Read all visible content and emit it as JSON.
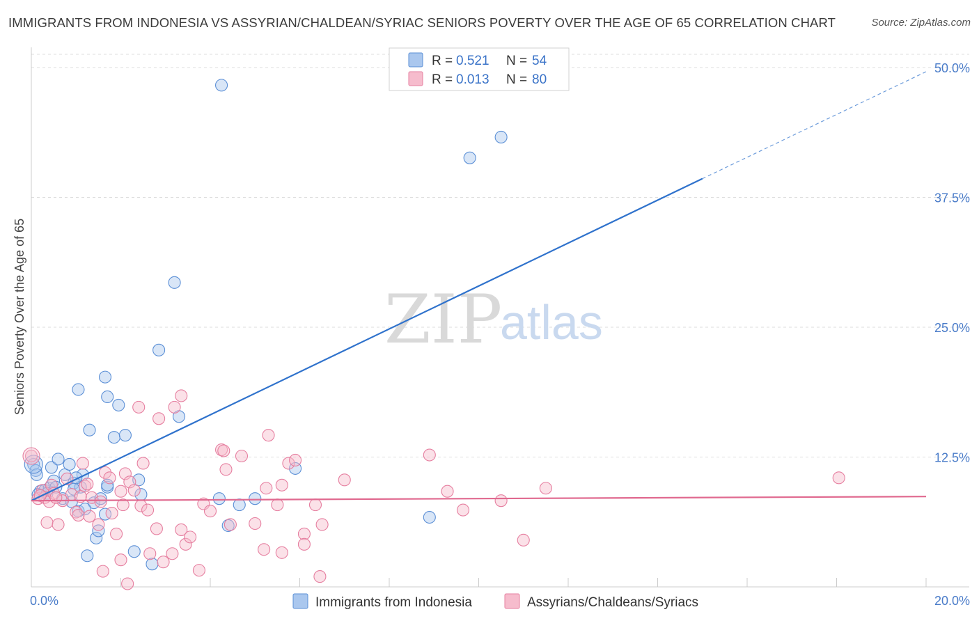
{
  "title": "IMMIGRANTS FROM INDONESIA VS ASSYRIAN/CHALDEAN/SYRIAC SENIORS POVERTY OVER THE AGE OF 65 CORRELATION CHART",
  "source": "Source: ZipAtlas.com",
  "watermark": {
    "zip": "ZIP",
    "atlas": "atlas"
  },
  "colors": {
    "blue": "#5b8fd6",
    "blue_fill": "#aac7ee",
    "blue_line": "#2f72cc",
    "pink": "#e67fa0",
    "pink_fill": "#f6bccd",
    "pink_line": "#e0698f",
    "grid": "#dcdcdc",
    "axis_text": "#4a7cc9"
  },
  "legend": {
    "rows": [
      {
        "r_label": "R =",
        "r_value": "0.521",
        "n_label": "N =",
        "n_value": "54"
      },
      {
        "r_label": "R =",
        "r_value": "0.013",
        "n_label": "N =",
        "n_value": "80"
      }
    ]
  },
  "bottom_legend": [
    "Immigrants from Indonesia",
    "Assyrians/Chaldeans/Syriacs"
  ],
  "chart_data": {
    "type": "scatter",
    "title": "IMMIGRANTS FROM INDONESIA VS ASSYRIAN/CHALDEAN/SYRIAC SENIORS POVERTY OVER THE AGE OF 65 CORRELATION CHART",
    "xlabel": "",
    "ylabel": "Seniors Poverty Over the Age of 65",
    "xlim": [
      0,
      20
    ],
    "ylim": [
      0,
      50
    ],
    "x_tick_labels": [
      "0.0%",
      "20.0%"
    ],
    "y_ticks": [
      12.5,
      25.0,
      37.5,
      50.0
    ],
    "y_tick_labels": [
      "12.5%",
      "25.0%",
      "37.5%",
      "50.0%"
    ],
    "grid": true,
    "series": [
      {
        "name": "Immigrants from Indonesia",
        "r": 0.521,
        "n": 54,
        "trend": {
          "x0": 0,
          "y0": 8.3,
          "x1": 15,
          "y1": 39.3,
          "dash_to_x": 20,
          "dash_to_y": 49.6
        },
        "points": [
          [
            0.05,
            11.8
          ],
          [
            0.1,
            11.2
          ],
          [
            0.12,
            10.8
          ],
          [
            0.2,
            9.2
          ],
          [
            0.3,
            9.3
          ],
          [
            0.4,
            9.5
          ],
          [
            0.45,
            11.5
          ],
          [
            0.5,
            10.2
          ],
          [
            0.55,
            9.6
          ],
          [
            0.6,
            12.3
          ],
          [
            0.7,
            8.5
          ],
          [
            0.75,
            10.8
          ],
          [
            0.85,
            11.8
          ],
          [
            0.9,
            8.2
          ],
          [
            0.95,
            10.0
          ],
          [
            1.05,
            7.3
          ],
          [
            1.1,
            9.6
          ],
          [
            1.15,
            10.8
          ],
          [
            1.25,
            3.0
          ],
          [
            1.3,
            15.1
          ],
          [
            1.4,
            8.1
          ],
          [
            1.45,
            4.7
          ],
          [
            1.5,
            5.4
          ],
          [
            1.55,
            8.5
          ],
          [
            1.65,
            7.0
          ],
          [
            1.7,
            9.6
          ],
          [
            1.7,
            9.8
          ],
          [
            1.85,
            14.4
          ],
          [
            1.95,
            17.5
          ],
          [
            2.1,
            14.6
          ],
          [
            2.4,
            10.3
          ],
          [
            2.45,
            8.9
          ],
          [
            2.3,
            3.4
          ],
          [
            2.7,
            2.2
          ],
          [
            2.85,
            22.8
          ],
          [
            3.2,
            29.3
          ],
          [
            3.3,
            16.4
          ],
          [
            4.25,
            48.3
          ],
          [
            4.2,
            8.5
          ],
          [
            4.4,
            5.9
          ],
          [
            4.65,
            7.9
          ],
          [
            5.0,
            8.5
          ],
          [
            5.9,
            11.4
          ],
          [
            8.9,
            6.7
          ],
          [
            9.8,
            41.3
          ],
          [
            10.5,
            43.3
          ],
          [
            0.15,
            8.9
          ],
          [
            0.35,
            9.0
          ],
          [
            1.0,
            10.5
          ],
          [
            1.2,
            7.5
          ],
          [
            1.65,
            20.2
          ],
          [
            1.7,
            18.3
          ],
          [
            1.05,
            19.0
          ],
          [
            0.95,
            9.4
          ]
        ]
      },
      {
        "name": "Assyrians/Chaldeans/Syriacs",
        "r": 0.013,
        "n": 80,
        "trend": {
          "x0": 0,
          "y0": 8.3,
          "x1": 20,
          "y1": 8.7
        },
        "points": [
          [
            0.0,
            12.6
          ],
          [
            0.15,
            8.5
          ],
          [
            0.25,
            9.3
          ],
          [
            0.3,
            8.6
          ],
          [
            0.35,
            6.2
          ],
          [
            0.4,
            8.2
          ],
          [
            0.45,
            9.8
          ],
          [
            0.5,
            9.0
          ],
          [
            0.6,
            6.0
          ],
          [
            0.7,
            8.3
          ],
          [
            0.8,
            10.4
          ],
          [
            0.9,
            8.9
          ],
          [
            1.0,
            7.2
          ],
          [
            1.05,
            6.9
          ],
          [
            1.15,
            11.9
          ],
          [
            1.2,
            9.7
          ],
          [
            1.3,
            6.8
          ],
          [
            1.35,
            8.6
          ],
          [
            1.5,
            6.0
          ],
          [
            1.6,
            1.5
          ],
          [
            1.65,
            11.0
          ],
          [
            1.75,
            10.5
          ],
          [
            1.8,
            7.1
          ],
          [
            1.9,
            5.1
          ],
          [
            2.0,
            2.6
          ],
          [
            2.05,
            7.9
          ],
          [
            2.1,
            10.9
          ],
          [
            2.2,
            10.1
          ],
          [
            2.3,
            9.3
          ],
          [
            2.4,
            17.3
          ],
          [
            2.45,
            7.8
          ],
          [
            2.5,
            11.9
          ],
          [
            2.6,
            7.4
          ],
          [
            2.65,
            3.2
          ],
          [
            2.8,
            5.6
          ],
          [
            2.85,
            16.2
          ],
          [
            2.95,
            2.4
          ],
          [
            3.15,
            3.2
          ],
          [
            3.2,
            17.3
          ],
          [
            3.35,
            5.5
          ],
          [
            3.35,
            18.4
          ],
          [
            3.45,
            4.1
          ],
          [
            3.55,
            4.8
          ],
          [
            3.75,
            1.6
          ],
          [
            3.85,
            8.0
          ],
          [
            4.0,
            7.3
          ],
          [
            4.25,
            13.2
          ],
          [
            4.35,
            11.3
          ],
          [
            4.45,
            6.0
          ],
          [
            4.7,
            12.6
          ],
          [
            5.0,
            6.1
          ],
          [
            5.2,
            3.6
          ],
          [
            5.25,
            9.5
          ],
          [
            5.3,
            14.6
          ],
          [
            5.5,
            7.9
          ],
          [
            5.6,
            9.8
          ],
          [
            5.6,
            3.3
          ],
          [
            5.75,
            11.9
          ],
          [
            5.9,
            12.2
          ],
          [
            6.1,
            5.1
          ],
          [
            6.1,
            4.1
          ],
          [
            6.35,
            7.9
          ],
          [
            6.45,
            1.0
          ],
          [
            6.5,
            6.0
          ],
          [
            7.0,
            10.3
          ],
          [
            8.9,
            12.7
          ],
          [
            9.3,
            9.2
          ],
          [
            9.65,
            7.4
          ],
          [
            10.5,
            8.3
          ],
          [
            11.0,
            4.5
          ],
          [
            11.5,
            9.5
          ],
          [
            18.05,
            10.5
          ],
          [
            2.15,
            0.3
          ],
          [
            1.55,
            8.2
          ],
          [
            0.55,
            8.6
          ],
          [
            1.1,
            8.7
          ],
          [
            0.2,
            8.8
          ],
          [
            1.25,
            9.9
          ],
          [
            4.3,
            13.1
          ],
          [
            2.0,
            9.2
          ]
        ]
      }
    ]
  }
}
